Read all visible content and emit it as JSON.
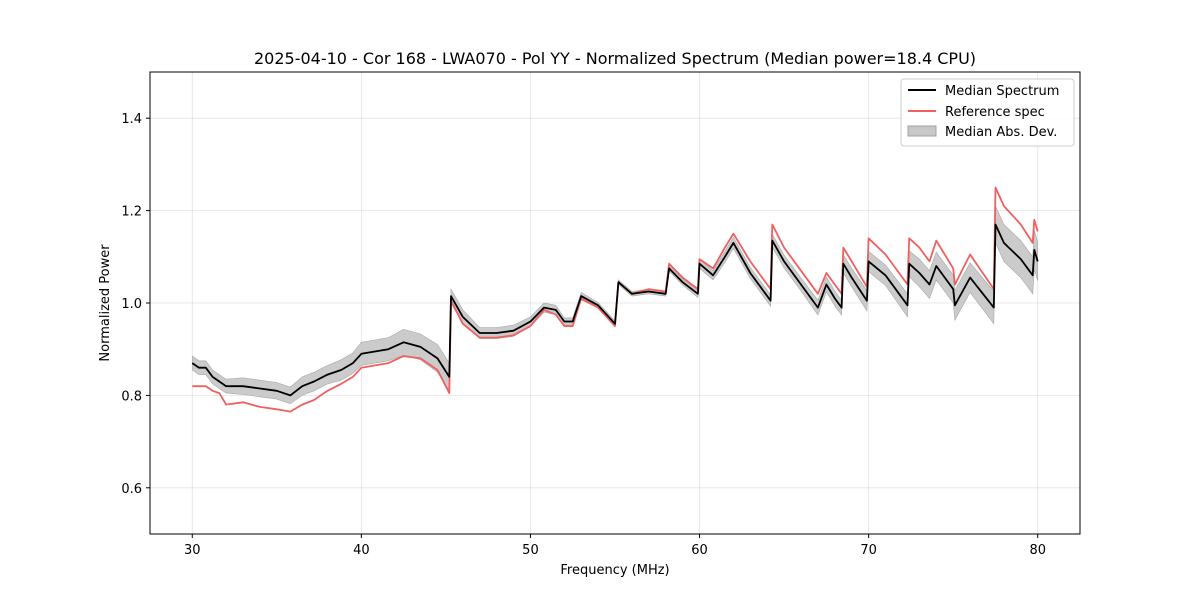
{
  "chart_data": {
    "type": "line",
    "title": "2025-04-10 - Cor 168 - LWA070 - Pol YY - Normalized Spectrum (Median power=18.4 CPU)",
    "xlabel": "Frequency (MHz)",
    "ylabel": "Normalized Power",
    "xlim": [
      27.5,
      82.5
    ],
    "ylim": [
      0.5,
      1.5
    ],
    "xticks": [
      30,
      40,
      50,
      60,
      70,
      80
    ],
    "yticks": [
      0.6,
      0.8,
      1.0,
      1.2,
      1.4
    ],
    "xtick_labels": [
      "30",
      "40",
      "50",
      "60",
      "70",
      "80"
    ],
    "ytick_labels": [
      "0.6",
      "0.8",
      "1.0",
      "1.2",
      "1.4"
    ],
    "grid": true,
    "legend_position": "top-right",
    "legend": [
      "Median Spectrum",
      "Reference spec",
      "Median Abs. Dev."
    ],
    "colors": {
      "median": "#000000",
      "reference": "#f06060",
      "mad": "#c8c8c8"
    },
    "series": [
      {
        "name": "Median Spectrum",
        "x": [
          30.0,
          30.4,
          30.8,
          31.2,
          31.6,
          32.0,
          33.0,
          34.0,
          35.0,
          35.8,
          36.5,
          37.2,
          38.0,
          38.8,
          39.5,
          40.0,
          40.8,
          41.6,
          42.5,
          43.5,
          44.5,
          45.2,
          45.3,
          46.0,
          47.0,
          48.0,
          49.0,
          50.0,
          50.8,
          51.5,
          52.0,
          52.5,
          53.0,
          54.0,
          55.0,
          55.2,
          56.0,
          57.0,
          58.0,
          58.2,
          59.0,
          59.9,
          60.0,
          60.8,
          61.5,
          62.0,
          63.0,
          64.2,
          64.3,
          65.0,
          66.0,
          67.0,
          67.5,
          68.0,
          68.4,
          68.5,
          69.0,
          69.9,
          70.0,
          71.0,
          72.3,
          72.4,
          73.0,
          73.6,
          74.0,
          75.0,
          75.1,
          76.0,
          77.4,
          77.5,
          78.0,
          79.0,
          79.7,
          79.8,
          80.0
        ],
        "y": [
          0.87,
          0.86,
          0.86,
          0.84,
          0.83,
          0.82,
          0.82,
          0.815,
          0.81,
          0.8,
          0.82,
          0.83,
          0.845,
          0.855,
          0.87,
          0.89,
          0.895,
          0.9,
          0.915,
          0.905,
          0.88,
          0.84,
          1.015,
          0.97,
          0.935,
          0.935,
          0.94,
          0.96,
          0.99,
          0.985,
          0.96,
          0.96,
          1.015,
          0.995,
          0.955,
          1.045,
          1.02,
          1.025,
          1.02,
          1.075,
          1.045,
          1.02,
          1.085,
          1.06,
          1.1,
          1.13,
          1.065,
          1.005,
          1.135,
          1.09,
          1.04,
          0.99,
          1.04,
          1.01,
          0.99,
          1.085,
          1.055,
          1.005,
          1.09,
          1.06,
          0.995,
          1.085,
          1.065,
          1.04,
          1.08,
          1.03,
          0.995,
          1.055,
          0.99,
          1.17,
          1.13,
          1.095,
          1.06,
          1.115,
          1.09
        ]
      },
      {
        "name": "Reference spec",
        "x": [
          30.0,
          30.4,
          30.8,
          31.2,
          31.6,
          32.0,
          33.0,
          34.0,
          35.0,
          35.8,
          36.5,
          37.2,
          38.0,
          38.8,
          39.5,
          40.0,
          40.8,
          41.6,
          42.5,
          43.5,
          44.5,
          45.2,
          45.3,
          46.0,
          47.0,
          48.0,
          49.0,
          50.0,
          50.8,
          51.5,
          52.0,
          52.5,
          53.0,
          54.0,
          55.0,
          55.2,
          56.0,
          57.0,
          58.0,
          58.2,
          59.0,
          59.9,
          60.0,
          60.8,
          61.5,
          62.0,
          63.0,
          64.2,
          64.3,
          65.0,
          66.0,
          67.0,
          67.5,
          68.0,
          68.4,
          68.5,
          69.0,
          69.9,
          70.0,
          71.0,
          72.3,
          72.4,
          73.0,
          73.6,
          74.0,
          75.0,
          75.1,
          76.0,
          77.4,
          77.5,
          78.0,
          79.0,
          79.7,
          79.8,
          80.0
        ],
        "y": [
          0.82,
          0.82,
          0.82,
          0.81,
          0.805,
          0.78,
          0.785,
          0.775,
          0.77,
          0.765,
          0.78,
          0.79,
          0.81,
          0.825,
          0.84,
          0.86,
          0.865,
          0.87,
          0.885,
          0.88,
          0.855,
          0.805,
          1.005,
          0.955,
          0.925,
          0.925,
          0.93,
          0.95,
          0.985,
          0.975,
          0.95,
          0.95,
          1.01,
          0.99,
          0.95,
          1.045,
          1.02,
          1.03,
          1.025,
          1.085,
          1.055,
          1.03,
          1.095,
          1.075,
          1.12,
          1.15,
          1.09,
          1.03,
          1.17,
          1.12,
          1.07,
          1.02,
          1.065,
          1.04,
          1.02,
          1.12,
          1.09,
          1.035,
          1.14,
          1.105,
          1.04,
          1.14,
          1.12,
          1.09,
          1.135,
          1.075,
          1.04,
          1.105,
          1.03,
          1.25,
          1.21,
          1.17,
          1.13,
          1.18,
          1.155
        ]
      }
    ],
    "band": {
      "name": "Median Abs. Dev.",
      "x": [
        30.0,
        30.4,
        30.8,
        31.2,
        31.6,
        32.0,
        33.0,
        34.0,
        35.0,
        35.8,
        36.5,
        37.2,
        38.0,
        38.8,
        39.5,
        40.0,
        40.8,
        41.6,
        42.5,
        43.5,
        44.5,
        45.2,
        45.3,
        46.0,
        47.0,
        48.0,
        49.0,
        50.0,
        50.8,
        51.5,
        52.0,
        52.5,
        53.0,
        54.0,
        55.0,
        55.2,
        56.0,
        57.0,
        58.0,
        58.2,
        59.0,
        59.9,
        60.0,
        60.8,
        61.5,
        62.0,
        63.0,
        64.2,
        64.3,
        65.0,
        66.0,
        67.0,
        67.5,
        68.0,
        68.4,
        68.5,
        69.0,
        69.9,
        70.0,
        71.0,
        72.3,
        72.4,
        73.0,
        73.6,
        74.0,
        75.0,
        75.1,
        76.0,
        77.4,
        77.5,
        78.0,
        79.0,
        79.7,
        79.8,
        80.0
      ],
      "mad": [
        0.015,
        0.015,
        0.015,
        0.015,
        0.015,
        0.015,
        0.018,
        0.018,
        0.018,
        0.018,
        0.02,
        0.02,
        0.02,
        0.022,
        0.022,
        0.025,
        0.025,
        0.025,
        0.028,
        0.028,
        0.03,
        0.03,
        0.015,
        0.015,
        0.012,
        0.012,
        0.012,
        0.01,
        0.01,
        0.01,
        0.008,
        0.008,
        0.008,
        0.006,
        0.006,
        0.005,
        0.005,
        0.005,
        0.005,
        0.006,
        0.006,
        0.008,
        0.01,
        0.01,
        0.012,
        0.012,
        0.012,
        0.012,
        0.014,
        0.014,
        0.014,
        0.016,
        0.016,
        0.016,
        0.016,
        0.02,
        0.02,
        0.022,
        0.022,
        0.022,
        0.025,
        0.028,
        0.03,
        0.03,
        0.03,
        0.03,
        0.032,
        0.032,
        0.035,
        0.04,
        0.04,
        0.04,
        0.04,
        0.042,
        0.042
      ]
    }
  }
}
